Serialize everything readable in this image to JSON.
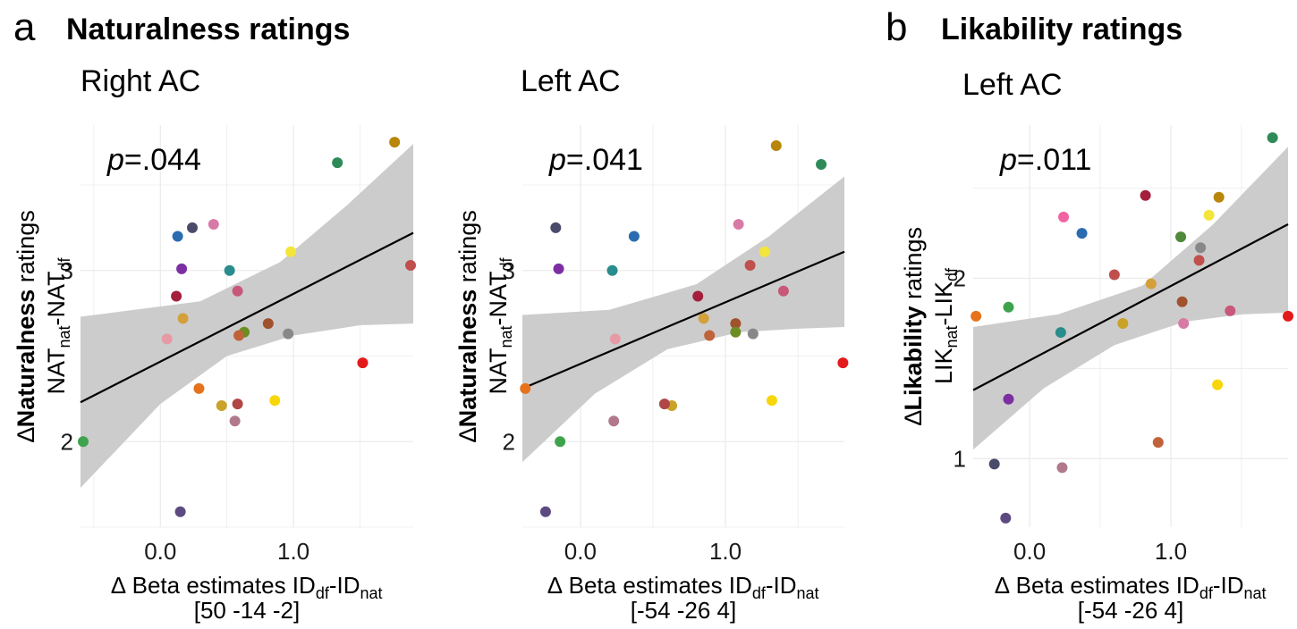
{
  "panels": {
    "a": {
      "letter": "a",
      "title": "Naturalness ratings"
    },
    "b": {
      "letter": "b",
      "title": "Likability ratings"
    }
  },
  "colors": {
    "ribbon": "#cccccc",
    "fit_line": "#000000",
    "grid": "#ebebeb"
  },
  "chart_data": [
    {
      "type": "scatter",
      "subtitle": "Right AC",
      "p_prefix": "p",
      "p_value": "=.044",
      "xlabel_delta": "∆",
      "xlabel_main": " Beta estimates ID",
      "xlabel_sub1": "df",
      "xlabel_mid": "-ID",
      "xlabel_sub2": "nat",
      "xlabel_coords": "[50 -14 -2]",
      "ylabel_delta": "∆",
      "ylabel_bold": "Naturalness",
      "ylabel_rest": " ratings",
      "ylabel2_a": "NAT",
      "ylabel2_sub1": "nat",
      "ylabel2_mid": "-NAT",
      "ylabel2_sub2": "df",
      "xlim": [
        -0.6,
        1.9
      ],
      "ylim": [
        1.5,
        3.85
      ],
      "xticks": [
        {
          "v": 0,
          "label": "0.0"
        },
        {
          "v": 1,
          "label": "1.0"
        }
      ],
      "yticks": [
        {
          "v": 2,
          "label": "2"
        },
        {
          "v": 3,
          "label": "3"
        }
      ],
      "fit": {
        "x": [
          -0.6,
          1.9
        ],
        "y": [
          2.23,
          3.22
        ]
      },
      "ribbon_upper": [
        {
          "x": -0.6,
          "y": 2.73
        },
        {
          "x": 0.3,
          "y": 2.82
        },
        {
          "x": 0.9,
          "y": 3.05
        },
        {
          "x": 1.4,
          "y": 3.38
        },
        {
          "x": 1.9,
          "y": 3.74
        }
      ],
      "ribbon_lower": [
        {
          "x": -0.6,
          "y": 1.73
        },
        {
          "x": 0.0,
          "y": 2.22
        },
        {
          "x": 0.5,
          "y": 2.5
        },
        {
          "x": 1.0,
          "y": 2.62
        },
        {
          "x": 1.5,
          "y": 2.68
        },
        {
          "x": 1.9,
          "y": 2.69
        }
      ],
      "points": [
        {
          "x": 1.76,
          "y": 3.75,
          "color": "#b8860b"
        },
        {
          "x": 1.33,
          "y": 3.63,
          "color": "#2e8b57"
        },
        {
          "x": 0.4,
          "y": 3.27,
          "color": "#d87aa6"
        },
        {
          "x": 0.24,
          "y": 3.25,
          "color": "#4a4a6a"
        },
        {
          "x": 0.13,
          "y": 3.2,
          "color": "#2b6cb0"
        },
        {
          "x": 0.98,
          "y": 3.11,
          "color": "#f3e53a"
        },
        {
          "x": 0.16,
          "y": 3.01,
          "color": "#7b2fa3"
        },
        {
          "x": 0.52,
          "y": 3.0,
          "color": "#2a8c8c"
        },
        {
          "x": 1.88,
          "y": 3.03,
          "color": "#c0504d"
        },
        {
          "x": 0.12,
          "y": 2.85,
          "color": "#a31f3b"
        },
        {
          "x": 0.58,
          "y": 2.88,
          "color": "#c8587a"
        },
        {
          "x": 0.17,
          "y": 2.72,
          "color": "#d4a03a"
        },
        {
          "x": 0.81,
          "y": 2.69,
          "color": "#a0522d"
        },
        {
          "x": 0.63,
          "y": 2.64,
          "color": "#6b8e23"
        },
        {
          "x": 0.59,
          "y": 2.62,
          "color": "#c0623a"
        },
        {
          "x": 0.96,
          "y": 2.63,
          "color": "#888888"
        },
        {
          "x": 0.05,
          "y": 2.6,
          "color": "#e69aa6"
        },
        {
          "x": 1.52,
          "y": 2.46,
          "color": "#e31a1c"
        },
        {
          "x": 0.29,
          "y": 2.31,
          "color": "#e6731c"
        },
        {
          "x": 0.86,
          "y": 2.24,
          "color": "#f7d60a"
        },
        {
          "x": 0.46,
          "y": 2.21,
          "color": "#c9a227"
        },
        {
          "x": 0.58,
          "y": 2.22,
          "color": "#b04646"
        },
        {
          "x": 0.56,
          "y": 2.12,
          "color": "#b07a8c"
        },
        {
          "x": -0.58,
          "y": 2.0,
          "color": "#3fa34d"
        },
        {
          "x": 0.15,
          "y": 1.59,
          "color": "#5c4a80"
        }
      ]
    },
    {
      "type": "scatter",
      "subtitle": "Left AC",
      "p_prefix": "p",
      "p_value": "=.041",
      "xlabel_delta": "∆",
      "xlabel_main": " Beta estimates ID",
      "xlabel_sub1": "df",
      "xlabel_mid": "-ID",
      "xlabel_sub2": "nat",
      "xlabel_coords": "[-54 -26 4]",
      "ylabel_delta": "∆",
      "ylabel_bold": "Naturalness",
      "ylabel_rest": " ratings",
      "ylabel2_a": "NAT",
      "ylabel2_sub1": "nat",
      "ylabel2_mid": "-NAT",
      "ylabel2_sub2": "df",
      "xlim": [
        -0.4,
        1.82
      ],
      "ylim": [
        1.5,
        3.85
      ],
      "xticks": [
        {
          "v": 0,
          "label": "0.0"
        },
        {
          "v": 1,
          "label": "1.0"
        }
      ],
      "yticks": [
        {
          "v": 2,
          "label": "2"
        },
        {
          "v": 3,
          "label": "3"
        }
      ],
      "fit": {
        "x": [
          -0.4,
          1.82
        ],
        "y": [
          2.31,
          3.11
        ]
      },
      "ribbon_upper": [
        {
          "x": -0.4,
          "y": 2.74
        },
        {
          "x": 0.2,
          "y": 2.77
        },
        {
          "x": 0.8,
          "y": 2.92
        },
        {
          "x": 1.3,
          "y": 3.2
        },
        {
          "x": 1.82,
          "y": 3.55
        }
      ],
      "ribbon_lower": [
        {
          "x": -0.4,
          "y": 1.88
        },
        {
          "x": 0.1,
          "y": 2.28
        },
        {
          "x": 0.6,
          "y": 2.54
        },
        {
          "x": 1.1,
          "y": 2.64
        },
        {
          "x": 1.5,
          "y": 2.66
        },
        {
          "x": 1.82,
          "y": 2.67
        }
      ],
      "points": [
        {
          "x": 1.35,
          "y": 3.73,
          "color": "#b8860b"
        },
        {
          "x": 1.66,
          "y": 3.62,
          "color": "#2e8b57"
        },
        {
          "x": 1.09,
          "y": 3.27,
          "color": "#d87aa6"
        },
        {
          "x": -0.17,
          "y": 3.25,
          "color": "#4a4a6a"
        },
        {
          "x": 0.37,
          "y": 3.2,
          "color": "#2b6cb0"
        },
        {
          "x": 1.27,
          "y": 3.11,
          "color": "#f3e53a"
        },
        {
          "x": -0.15,
          "y": 3.01,
          "color": "#7b2fa3"
        },
        {
          "x": 0.22,
          "y": 3.0,
          "color": "#2a8c8c"
        },
        {
          "x": 1.17,
          "y": 3.03,
          "color": "#c0504d"
        },
        {
          "x": 0.81,
          "y": 2.85,
          "color": "#a31f3b"
        },
        {
          "x": 1.4,
          "y": 2.88,
          "color": "#c8587a"
        },
        {
          "x": 0.85,
          "y": 2.72,
          "color": "#d4a03a"
        },
        {
          "x": 1.07,
          "y": 2.69,
          "color": "#a0522d"
        },
        {
          "x": 1.07,
          "y": 2.64,
          "color": "#6b8e23"
        },
        {
          "x": 0.89,
          "y": 2.62,
          "color": "#c0623a"
        },
        {
          "x": 1.19,
          "y": 2.63,
          "color": "#888888"
        },
        {
          "x": 0.24,
          "y": 2.6,
          "color": "#e69aa6"
        },
        {
          "x": 1.81,
          "y": 2.46,
          "color": "#e31a1c"
        },
        {
          "x": -0.38,
          "y": 2.31,
          "color": "#e6731c"
        },
        {
          "x": 1.32,
          "y": 2.24,
          "color": "#f7d60a"
        },
        {
          "x": 0.63,
          "y": 2.21,
          "color": "#c9a227"
        },
        {
          "x": 0.58,
          "y": 2.22,
          "color": "#b04646"
        },
        {
          "x": 0.23,
          "y": 2.12,
          "color": "#b07a8c"
        },
        {
          "x": -0.14,
          "y": 2.0,
          "color": "#3fa34d"
        },
        {
          "x": -0.24,
          "y": 1.59,
          "color": "#5c4a80"
        }
      ]
    },
    {
      "type": "scatter",
      "subtitle": "Left AC",
      "p_prefix": "p",
      "p_value": "=.011",
      "xlabel_delta": "∆",
      "xlabel_main": " Beta estimates ID",
      "xlabel_sub1": "df",
      "xlabel_mid": "-ID",
      "xlabel_sub2": "nat",
      "xlabel_coords": "[-54 -26 4]",
      "ylabel_delta": "∆",
      "ylabel_bold": "Likability",
      "ylabel_rest": " ratings",
      "ylabel2_a": "LIK",
      "ylabel2_sub1": "nat",
      "ylabel2_mid": "-LIK",
      "ylabel2_sub2": "df",
      "xlim": [
        -0.4,
        1.83
      ],
      "ylim": [
        0.62,
        2.85
      ],
      "xticks": [
        {
          "v": 0,
          "label": "0.0"
        },
        {
          "v": 1,
          "label": "1.0"
        }
      ],
      "yticks": [
        {
          "v": 1,
          "label": "1"
        },
        {
          "v": 2,
          "label": "2"
        }
      ],
      "fit": {
        "x": [
          -0.4,
          1.83
        ],
        "y": [
          1.38,
          2.3
        ]
      },
      "ribbon_upper": [
        {
          "x": -0.4,
          "y": 1.73
        },
        {
          "x": 0.2,
          "y": 1.8
        },
        {
          "x": 0.8,
          "y": 1.96
        },
        {
          "x": 1.3,
          "y": 2.3
        },
        {
          "x": 1.83,
          "y": 2.73
        }
      ],
      "ribbon_lower": [
        {
          "x": -0.4,
          "y": 1.05
        },
        {
          "x": 0.1,
          "y": 1.39
        },
        {
          "x": 0.6,
          "y": 1.63
        },
        {
          "x": 1.1,
          "y": 1.76
        },
        {
          "x": 1.5,
          "y": 1.8
        },
        {
          "x": 1.83,
          "y": 1.81
        }
      ],
      "points": [
        {
          "x": 1.72,
          "y": 2.78,
          "color": "#2e8b57"
        },
        {
          "x": 1.34,
          "y": 2.45,
          "color": "#b8860b"
        },
        {
          "x": 0.82,
          "y": 2.46,
          "color": "#a31f3b"
        },
        {
          "x": 0.24,
          "y": 2.34,
          "color": "#f063a0"
        },
        {
          "x": 1.27,
          "y": 2.35,
          "color": "#f3e53a"
        },
        {
          "x": 0.37,
          "y": 2.25,
          "color": "#2b6cb0"
        },
        {
          "x": 1.07,
          "y": 2.23,
          "color": "#4e8a3a"
        },
        {
          "x": 1.21,
          "y": 2.17,
          "color": "#888888"
        },
        {
          "x": 1.2,
          "y": 2.1,
          "color": "#c0504d"
        },
        {
          "x": 0.6,
          "y": 2.02,
          "color": "#c0504d"
        },
        {
          "x": 0.86,
          "y": 1.97,
          "color": "#d4a03a"
        },
        {
          "x": 1.08,
          "y": 1.87,
          "color": "#a0522d"
        },
        {
          "x": -0.15,
          "y": 1.84,
          "color": "#3fa34d"
        },
        {
          "x": 1.42,
          "y": 1.82,
          "color": "#c8587a"
        },
        {
          "x": -0.38,
          "y": 1.79,
          "color": "#e6731c"
        },
        {
          "x": 1.83,
          "y": 1.79,
          "color": "#e31a1c"
        },
        {
          "x": 0.66,
          "y": 1.75,
          "color": "#c9a227"
        },
        {
          "x": 1.09,
          "y": 1.75,
          "color": "#d87aa6"
        },
        {
          "x": 0.22,
          "y": 1.7,
          "color": "#2a8c8c"
        },
        {
          "x": 1.33,
          "y": 1.41,
          "color": "#f7d60a"
        },
        {
          "x": -0.15,
          "y": 1.33,
          "color": "#7b2fa3"
        },
        {
          "x": 0.91,
          "y": 1.09,
          "color": "#c0623a"
        },
        {
          "x": -0.25,
          "y": 0.97,
          "color": "#4a4a6a"
        },
        {
          "x": 0.23,
          "y": 0.95,
          "color": "#b07a8c"
        },
        {
          "x": -0.17,
          "y": 0.67,
          "color": "#5c4a80"
        }
      ]
    }
  ]
}
